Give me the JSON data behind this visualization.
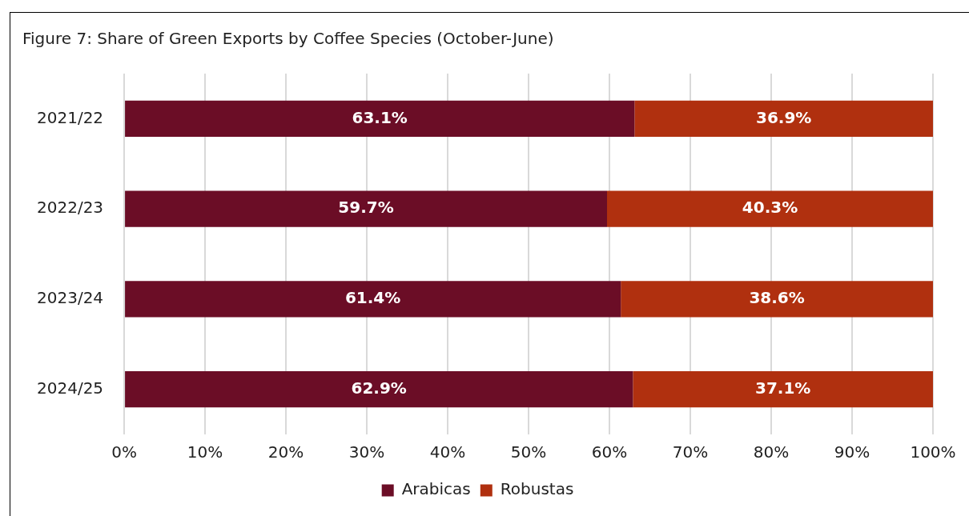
{
  "chart_data": {
    "type": "bar",
    "orientation": "horizontal",
    "stacked": true,
    "title": "Figure 7: Share of Green Exports by Coffee Species (October-June)",
    "categories": [
      "2021/22",
      "2022/23",
      "2023/24",
      "2024/25"
    ],
    "series": [
      {
        "name": "Arabicas",
        "color": "#6b0d26",
        "values": [
          63.1,
          59.7,
          61.4,
          62.9
        ],
        "value_labels": [
          "63.1%",
          "59.7%",
          "61.4%",
          "62.9%"
        ]
      },
      {
        "name": "Robustas",
        "color": "#b0300f",
        "values": [
          36.9,
          40.3,
          38.6,
          37.1
        ],
        "value_labels": [
          "36.9%",
          "40.3%",
          "38.6%",
          "37.1%"
        ]
      }
    ],
    "xlim": [
      0,
      100
    ],
    "xticks": [
      {
        "value": 0,
        "label": "0%"
      },
      {
        "value": 10,
        "label": "10%"
      },
      {
        "value": 20,
        "label": "20%"
      },
      {
        "value": 30,
        "label": "30%"
      },
      {
        "value": 40,
        "label": "40%"
      },
      {
        "value": 50,
        "label": "50%"
      },
      {
        "value": 60,
        "label": "60%"
      },
      {
        "value": 70,
        "label": "70%"
      },
      {
        "value": 80,
        "label": "80%"
      },
      {
        "value": 90,
        "label": "90%"
      },
      {
        "value": 100,
        "label": "100%"
      }
    ],
    "grid": "x",
    "legend": "bottom"
  }
}
